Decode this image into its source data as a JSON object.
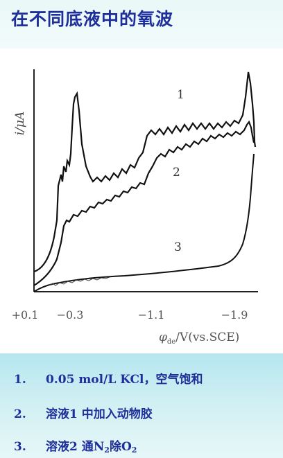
{
  "title": "在不同底液中的氧波",
  "figure": {
    "ylabel": "i/μA",
    "xlabel_prefix": "φ",
    "xlabel_sub": "de",
    "xlabel_suffix": "/V(vs.SCE)",
    "x_ticks": [
      "+0.1",
      "−0.3",
      "−1.1",
      "−1.9"
    ],
    "curve_labels": [
      "1",
      "2",
      "3"
    ]
  },
  "legend": [
    {
      "num": "1.",
      "text": "0.05 mol/L KCl，空气饱和"
    },
    {
      "num": "2.",
      "text": "溶液1 中加入动物胶"
    },
    {
      "num": "3.",
      "pre": "溶液2 通N",
      "sub1": "2",
      "mid": "除O",
      "sub2": "2"
    }
  ]
}
